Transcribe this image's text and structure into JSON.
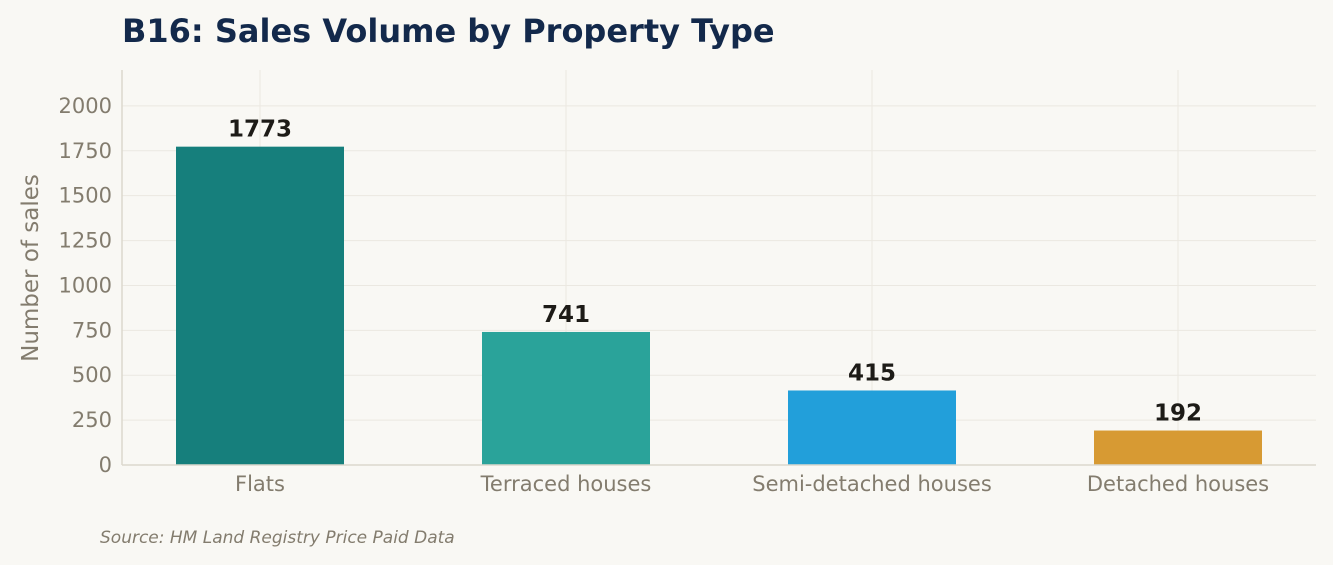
{
  "chart_data": {
    "type": "bar",
    "title": "B16: Sales Volume by Property Type",
    "ylabel": "Number of sales",
    "xlabel": "",
    "categories": [
      "Flats",
      "Terraced houses",
      "Semi-detached houses",
      "Detached houses"
    ],
    "values": [
      1773,
      741,
      415,
      192
    ],
    "value_labels": [
      "1773",
      "741",
      "415",
      "192"
    ],
    "colors": [
      "#167f7c",
      "#2aa39a",
      "#229fda",
      "#d79a33"
    ],
    "ylim": [
      0,
      2200
    ],
    "yticks": [
      0,
      250,
      500,
      750,
      1000,
      1250,
      1500,
      1750,
      2000
    ],
    "ytick_labels": [
      "0",
      "250",
      "500",
      "750",
      "1000",
      "1250",
      "1500",
      "1750",
      "2000"
    ],
    "grid": true,
    "legend": "none",
    "source": "Source: HM Land Registry Price Paid Data"
  }
}
